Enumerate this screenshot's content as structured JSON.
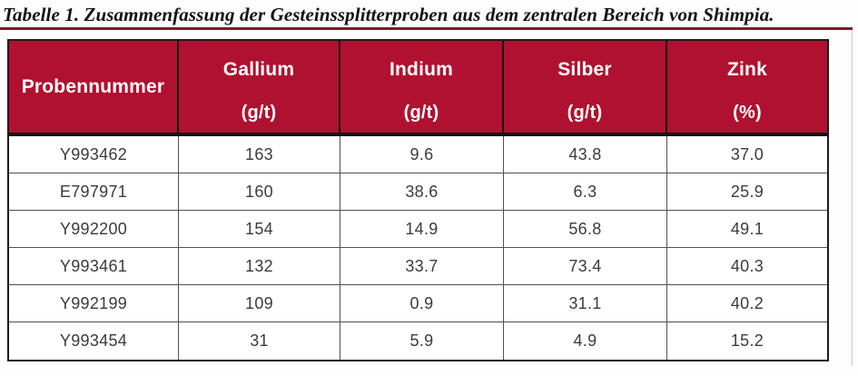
{
  "caption": "Tabelle 1. Zusammenfassung der Gesteinssplitterproben aus dem zentralen Bereich von Shimpia.",
  "table": {
    "header": [
      {
        "label": "Probennummer",
        "unit": ""
      },
      {
        "label": "Gallium",
        "unit": "(g/t)"
      },
      {
        "label": "Indium",
        "unit": "(g/t)"
      },
      {
        "label": "Silber",
        "unit": "(g/t)"
      },
      {
        "label": "Zink",
        "unit": "(%)"
      }
    ],
    "rows": [
      {
        "sample": "Y993462",
        "gallium": "163",
        "indium": "9.6",
        "silber": "43.8",
        "zink": "37.0"
      },
      {
        "sample": "E797971",
        "gallium": "160",
        "indium": "38.6",
        "silber": "6.3",
        "zink": "25.9"
      },
      {
        "sample": "Y992200",
        "gallium": "154",
        "indium": "14.9",
        "silber": "56.8",
        "zink": "49.1"
      },
      {
        "sample": "Y993461",
        "gallium": "132",
        "indium": "33.7",
        "silber": "73.4",
        "zink": "40.3"
      },
      {
        "sample": "Y992199",
        "gallium": "109",
        "indium": "0.9",
        "silber": "31.1",
        "zink": "40.2"
      },
      {
        "sample": "Y993454",
        "gallium": "31",
        "indium": "5.9",
        "silber": "4.9",
        "zink": "15.2"
      }
    ]
  },
  "colors": {
    "header_bg": "#b01130",
    "header_text": "#ffffff",
    "caption_rule": "#7a1e22",
    "table_border": "#1c1c1c",
    "grid_line": "#515151",
    "body_text": "#3b3b3b"
  }
}
